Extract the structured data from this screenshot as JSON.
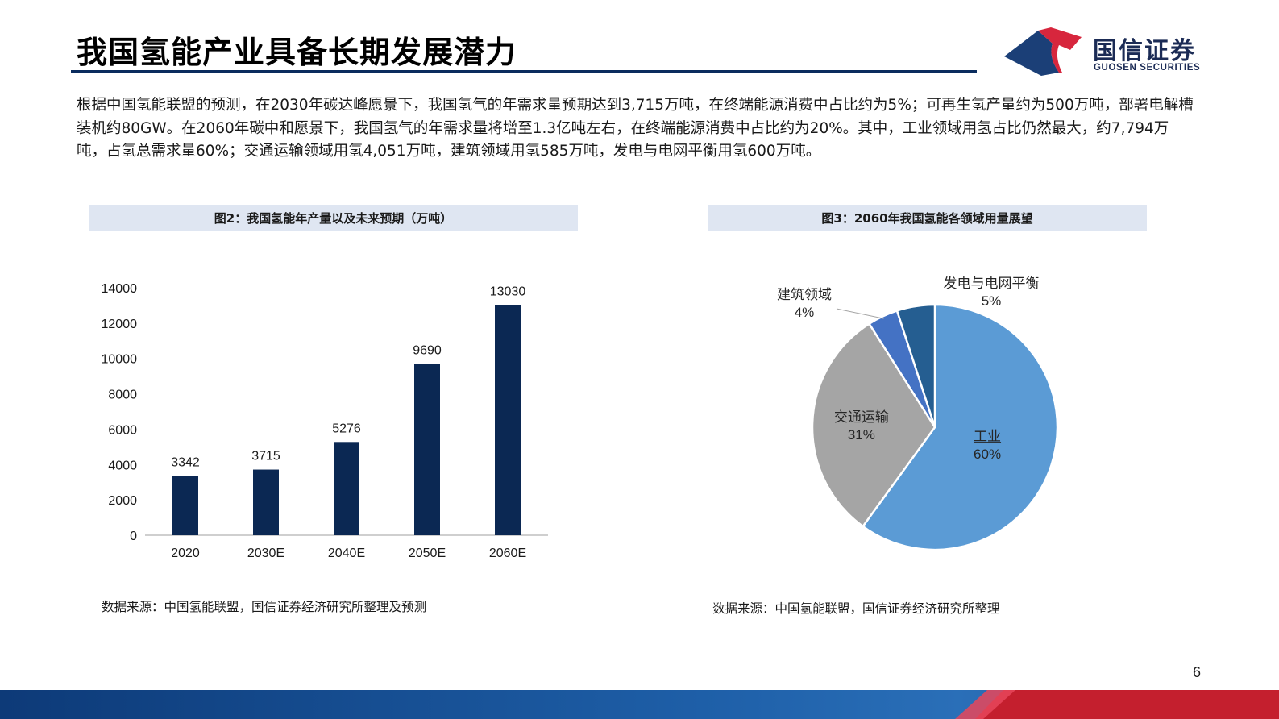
{
  "header": {
    "title": "我国氢能产业具备长期发展潜力",
    "brand_name": "国信证券",
    "brand_en": "GUOSEN SECURITIES"
  },
  "intro_text": "根据中国氢能联盟的预测，在2030年碳达峰愿景下，我国氢气的年需求量预期达到3,715万吨，在终端能源消费中占比约为5%；可再生氢产量约为500万吨，部署电解槽装机约80GW。在2060年碳中和愿景下，我国氢气的年需求量将增至1.3亿吨左右，在终端能源消费中占比约为20%。其中，工业领域用氢占比仍然最大，约7,794万吨，占氢总需求量60%；交通运输领域用氢4,051万吨，建筑领域用氢585万吨，发电与电网平衡用氢600万吨。",
  "figures": {
    "left": {
      "header": "图2：我国氢能年产量以及未来预期（万吨）",
      "source": "数据来源：中国氢能联盟，国信证券经济研究所整理及预测"
    },
    "right": {
      "header": "图3：2060年我国氢能各领域用量展望",
      "source": "数据来源：中国氢能联盟，国信证券经济研究所整理"
    }
  },
  "page_number": "6",
  "colors": {
    "bar": "#0b2853",
    "title_rule": "#0a2c5e",
    "header_bg": "#dfe6f2",
    "brand_red": "#d7263d",
    "brand_navy": "#1b3f77"
  },
  "chart_data": [
    {
      "type": "bar",
      "categories": [
        "2020",
        "2030E",
        "2040E",
        "2050E",
        "2060E"
      ],
      "values": [
        3342,
        3715,
        5276,
        9690,
        13030
      ],
      "data_labels": [
        "3342",
        "3715",
        "5276",
        "9690",
        "13030"
      ],
      "ylim": [
        0,
        14000
      ],
      "yticks": [
        0,
        2000,
        4000,
        6000,
        8000,
        10000,
        12000,
        14000
      ],
      "ytick_labels": [
        "0",
        "2000",
        "4000",
        "6000",
        "8000",
        "10000",
        "12000",
        "14000"
      ],
      "grid": false,
      "legend": false
    },
    {
      "type": "pie",
      "slices": [
        {
          "label": "工业",
          "value": 60,
          "pct_label": "60%",
          "color": "#5b9bd5"
        },
        {
          "label": "交通运输",
          "value": 31,
          "pct_label": "31%",
          "color": "#a5a5a5"
        },
        {
          "label": "建筑领域",
          "value": 4,
          "pct_label": "4%",
          "color": "#4472c4"
        },
        {
          "label": "发电与电网平衡",
          "value": 5,
          "pct_label": "5%",
          "color": "#255e91"
        }
      ],
      "start_angle_deg": 0,
      "direction": "clockwise",
      "legend": false
    }
  ]
}
